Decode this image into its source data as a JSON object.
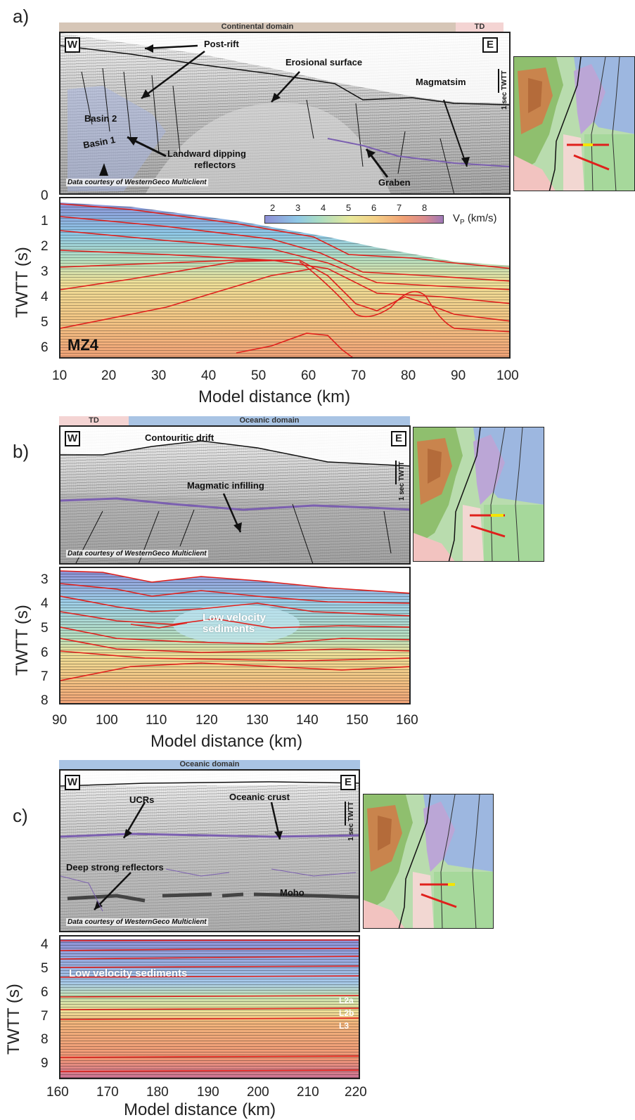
{
  "panels": {
    "a": {
      "label": "a)",
      "domain_bar": {
        "left": "Continental domain",
        "right": "TD"
      },
      "west": "W",
      "east": "E",
      "annotations": {
        "post_rift": "Post-rift",
        "erosional": "Erosional surface",
        "magmatism": "Magmatsim",
        "basin2": "Basin 2",
        "basin1": "Basin 1",
        "landward": "Landward dipping",
        "landward2": "reflectors",
        "graben": "Graben"
      },
      "scale": "1 sec TWTT",
      "credit": "Data courtesy of WesternGeco Multiclient",
      "model_label": "MZ4",
      "colorbar": {
        "ticks": [
          "2",
          "3",
          "4",
          "5",
          "6",
          "7",
          "8"
        ],
        "label": "V",
        "label_sub": "P",
        "label_unit": " (km/s)"
      },
      "y_ticks": [
        "0",
        "1",
        "2",
        "3",
        "4",
        "5",
        "6"
      ],
      "x_ticks": [
        "10",
        "20",
        "30",
        "40",
        "50",
        "60",
        "70",
        "80",
        "90",
        "100"
      ],
      "ylabel": "TWTT (s)",
      "xlabel": "Model distance (km)"
    },
    "b": {
      "label": "b)",
      "domain_bar": {
        "left": "TD",
        "right": "Oceanic domain"
      },
      "west": "W",
      "east": "E",
      "annotations": {
        "contouritic": "Contouritic drift",
        "magmatic_infill": "Magmatic infilling",
        "low_vel1": "Low velocity",
        "low_vel2": "sediments"
      },
      "scale": "1 sec TWTT",
      "credit": "Data courtesy of WesternGeco Multiclient",
      "y_ticks": [
        "3",
        "4",
        "5",
        "6",
        "7",
        "8"
      ],
      "x_ticks": [
        "90",
        "100",
        "110",
        "120",
        "130",
        "140",
        "150",
        "160"
      ],
      "ylabel": "TWTT (s)",
      "xlabel": "Model distance (km)"
    },
    "c": {
      "label": "c)",
      "domain_bar": {
        "center": "Oceanic domain"
      },
      "west": "W",
      "east": "E",
      "annotations": {
        "ucrs": "UCRs",
        "oceanic_crust": "Oceanic crust",
        "deep_reflectors": "Deep strong reflectors",
        "moho": "Moho",
        "low_vel": "Low velocity sediments",
        "l2a": "L2a",
        "l2b": "L2b",
        "l3": "L3"
      },
      "scale": "1 sec TWTT",
      "credit": "Data courtesy of WesternGeco Multiclient",
      "y_ticks": [
        "4",
        "5",
        "6",
        "7",
        "8",
        "9"
      ],
      "x_ticks": [
        "160",
        "170",
        "180",
        "190",
        "200",
        "210",
        "220"
      ],
      "ylabel": "TWTT (s)",
      "xlabel": "Model distance (km)"
    }
  },
  "colors": {
    "continental": "#d6c6b7",
    "transitional": "#f4d4d3",
    "oceanic": "#a9c4e4",
    "velocity_interface": "#e0201c",
    "location_marker": "#f5e400"
  }
}
